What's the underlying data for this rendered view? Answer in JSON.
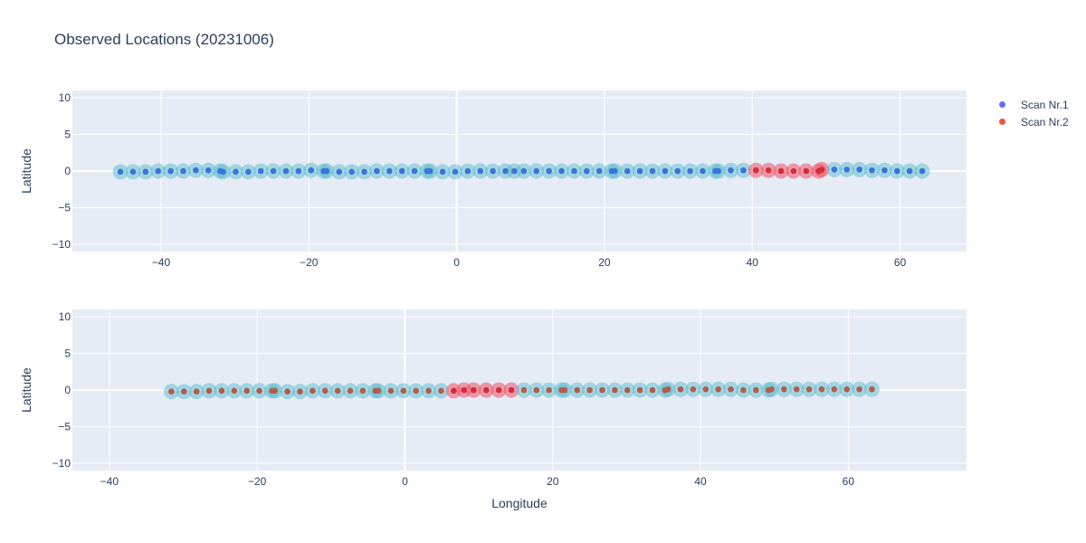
{
  "chart": {
    "title": "Observed Locations (20231006)",
    "xlabel": "Longitude",
    "ylabel": "Latitude"
  },
  "legend": {
    "items": [
      {
        "label": "Scan Nr.1",
        "color": "#636efa"
      },
      {
        "label": "Scan Nr.2",
        "color": "#ef553b"
      }
    ]
  },
  "chart_data": [
    {
      "type": "scatter",
      "title": "Observed Locations (20231006)",
      "xlabel": "",
      "ylabel": "Latitude",
      "xlim": [
        -52,
        69
      ],
      "ylim": [
        -11,
        11
      ],
      "xticks": [
        -40,
        -20,
        0,
        20,
        40,
        60
      ],
      "yticks": [
        -10,
        -5,
        0,
        5,
        10
      ],
      "grid": true,
      "halo_color": "#4db6c9",
      "halo_highlight_color": "#ef5466",
      "series": [
        {
          "name": "Scan Nr.1",
          "color": "#3a73d9",
          "x": [
            -45.5,
            -43.8,
            -42.1,
            -40.4,
            -38.7,
            -37.0,
            -35.3,
            -33.6,
            -32.0,
            -31.6,
            -29.9,
            -28.2,
            -26.5,
            -24.8,
            -23.1,
            -21.4,
            -19.7,
            -18.0,
            -17.6,
            -15.9,
            -14.2,
            -12.5,
            -10.8,
            -9.1,
            -7.4,
            -5.7,
            -4.0,
            -3.6,
            -1.9,
            -0.2,
            1.5,
            3.2,
            4.9,
            6.6,
            7.8,
            9.1,
            10.8,
            12.5,
            14.2,
            15.9,
            17.6,
            19.3,
            21.0,
            21.4,
            23.1,
            24.8,
            26.5,
            28.2,
            29.9,
            31.6,
            33.3,
            35.0,
            35.4,
            37.1,
            38.8,
            40.5,
            42.2,
            43.9,
            45.6,
            47.3,
            49.0,
            49.4,
            51.1,
            52.8,
            54.5,
            56.2,
            57.9,
            59.6,
            61.3,
            63.0
          ],
          "y": [
            -0.1,
            -0.1,
            -0.1,
            0.0,
            0.0,
            0.0,
            0.1,
            0.1,
            0.0,
            -0.1,
            -0.1,
            -0.1,
            0.0,
            0.0,
            0.0,
            0.0,
            0.1,
            0.0,
            0.0,
            -0.1,
            -0.1,
            -0.1,
            0.0,
            0.0,
            0.0,
            0.0,
            0.0,
            0.0,
            -0.1,
            -0.1,
            0.0,
            0.0,
            0.0,
            0.0,
            0.0,
            0.0,
            0.0,
            0.0,
            0.0,
            0.0,
            0.0,
            0.0,
            0.0,
            0.0,
            0.0,
            0.0,
            0.0,
            0.0,
            0.0,
            0.0,
            0.0,
            0.0,
            0.0,
            0.1,
            0.1,
            0.1,
            0.1,
            0.0,
            0.0,
            0.0,
            0.0,
            0.2,
            0.2,
            0.2,
            0.2,
            0.1,
            0.1,
            0.0,
            0.0,
            0.0
          ],
          "highlight": [
            false,
            false,
            false,
            false,
            false,
            false,
            false,
            false,
            false,
            false,
            false,
            false,
            false,
            false,
            false,
            false,
            false,
            false,
            false,
            false,
            false,
            false,
            false,
            false,
            false,
            false,
            false,
            false,
            false,
            false,
            false,
            false,
            false,
            false,
            false,
            false,
            false,
            false,
            false,
            false,
            false,
            false,
            false,
            false,
            false,
            false,
            false,
            false,
            false,
            false,
            false,
            false,
            false,
            false,
            false,
            true,
            true,
            true,
            true,
            true,
            true,
            true,
            false,
            false,
            false,
            false,
            false,
            false,
            false,
            false
          ]
        }
      ]
    },
    {
      "type": "scatter",
      "xlabel": "Longitude",
      "ylabel": "Latitude",
      "xlim": [
        -45,
        76
      ],
      "ylim": [
        -11,
        11
      ],
      "xticks": [
        -40,
        -20,
        0,
        20,
        40,
        60
      ],
      "yticks": [
        -10,
        -5,
        0,
        5,
        10
      ],
      "grid": true,
      "halo_color": "#4db6c9",
      "halo_highlight_color": "#ef5466",
      "series": [
        {
          "name": "Scan Nr.2",
          "color": "#b35c4a",
          "x": [
            -31.6,
            -29.9,
            -28.2,
            -26.5,
            -24.8,
            -23.1,
            -21.4,
            -19.7,
            -18.0,
            -17.6,
            -15.9,
            -14.2,
            -12.5,
            -10.8,
            -9.1,
            -7.4,
            -5.7,
            -4.0,
            -3.6,
            -1.9,
            -0.2,
            1.5,
            3.2,
            4.9,
            6.6,
            8.0,
            9.3,
            11.0,
            12.7,
            14.4,
            16.1,
            17.8,
            19.5,
            21.2,
            21.6,
            23.3,
            25.0,
            26.7,
            28.4,
            30.1,
            31.8,
            33.5,
            35.2,
            35.6,
            37.3,
            39.0,
            40.7,
            42.4,
            44.1,
            45.8,
            47.5,
            49.2,
            49.6,
            51.3,
            53.0,
            54.7,
            56.4,
            58.1,
            59.8,
            61.5,
            63.2
          ],
          "y": [
            -0.2,
            -0.2,
            -0.2,
            -0.1,
            -0.1,
            -0.1,
            -0.1,
            -0.1,
            -0.1,
            -0.1,
            -0.2,
            -0.2,
            -0.1,
            -0.1,
            -0.1,
            -0.1,
            -0.1,
            -0.1,
            -0.1,
            -0.1,
            -0.1,
            -0.1,
            -0.1,
            -0.1,
            -0.1,
            0.0,
            0.0,
            0.0,
            0.0,
            0.0,
            0.0,
            0.0,
            0.0,
            0.0,
            0.0,
            0.0,
            0.0,
            0.0,
            0.0,
            0.0,
            0.0,
            0.0,
            0.0,
            0.1,
            0.1,
            0.1,
            0.1,
            0.1,
            0.1,
            0.0,
            0.0,
            0.0,
            0.1,
            0.1,
            0.1,
            0.1,
            0.1,
            0.1,
            0.1,
            0.1,
            0.1
          ],
          "highlight": [
            false,
            false,
            false,
            false,
            false,
            false,
            false,
            false,
            false,
            false,
            false,
            false,
            false,
            false,
            false,
            false,
            false,
            false,
            false,
            false,
            false,
            false,
            false,
            false,
            true,
            true,
            true,
            true,
            true,
            true,
            false,
            false,
            false,
            false,
            false,
            false,
            false,
            false,
            false,
            false,
            false,
            false,
            false,
            false,
            false,
            false,
            false,
            false,
            false,
            false,
            false,
            false,
            false,
            false,
            false,
            false,
            false,
            false,
            false,
            false,
            false
          ]
        }
      ]
    }
  ]
}
